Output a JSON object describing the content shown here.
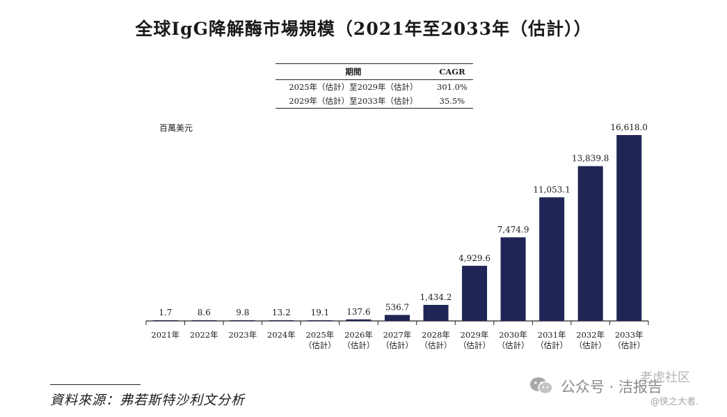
{
  "title": "全球IgG降解酶市場規模（2021年至2033年（估計））",
  "cagr_table": {
    "headers": [
      "期間",
      "CAGR"
    ],
    "rows": [
      {
        "period": "2025年（估計）至2029年（估計）",
        "cagr": "301.0%"
      },
      {
        "period": "2029年（估計）至2033年（估計）",
        "cagr": "35.5%"
      }
    ]
  },
  "chart_data": {
    "type": "bar",
    "title": "全球IgG降解酶市場規模（2021年至2033年（估計））",
    "unit_label": "百萬美元",
    "xlabel": "",
    "ylabel": "百萬美元",
    "ylim": [
      0,
      18000
    ],
    "grid": false,
    "bar_color": "#1f2554",
    "categories": [
      {
        "line1": "2021年",
        "line2": ""
      },
      {
        "line1": "2022年",
        "line2": ""
      },
      {
        "line1": "2023年",
        "line2": ""
      },
      {
        "line1": "2024年",
        "line2": ""
      },
      {
        "line1": "2025年",
        "line2": "（估計）"
      },
      {
        "line1": "2026年",
        "line2": "（估計）"
      },
      {
        "line1": "2027年",
        "line2": "（估計）"
      },
      {
        "line1": "2028年",
        "line2": "（估計）"
      },
      {
        "line1": "2029年",
        "line2": "（估計）"
      },
      {
        "line1": "2030年",
        "line2": "（估計）"
      },
      {
        "line1": "2031年",
        "line2": "（估計）"
      },
      {
        "line1": "2032年",
        "line2": "（估計）"
      },
      {
        "line1": "2033年",
        "line2": "（估計）"
      }
    ],
    "values": [
      1.7,
      8.6,
      9.8,
      13.2,
      19.1,
      137.6,
      536.7,
      1434.2,
      4929.6,
      7474.9,
      11053.1,
      13839.8,
      16618.0
    ],
    "labels": [
      "1.7",
      "8.6",
      "9.8",
      "13.2",
      "19.1",
      "137.6",
      "536.7",
      "1,434.2",
      "4,929.6",
      "7,474.9",
      "11,053.1",
      "13,839.8",
      "16,618.0"
    ]
  },
  "source": "資料來源：弗若斯特沙利文分析",
  "watermark": {
    "main": "公众号 · 洁报告",
    "top": "老虎社区",
    "sub": "@侠之大者."
  }
}
